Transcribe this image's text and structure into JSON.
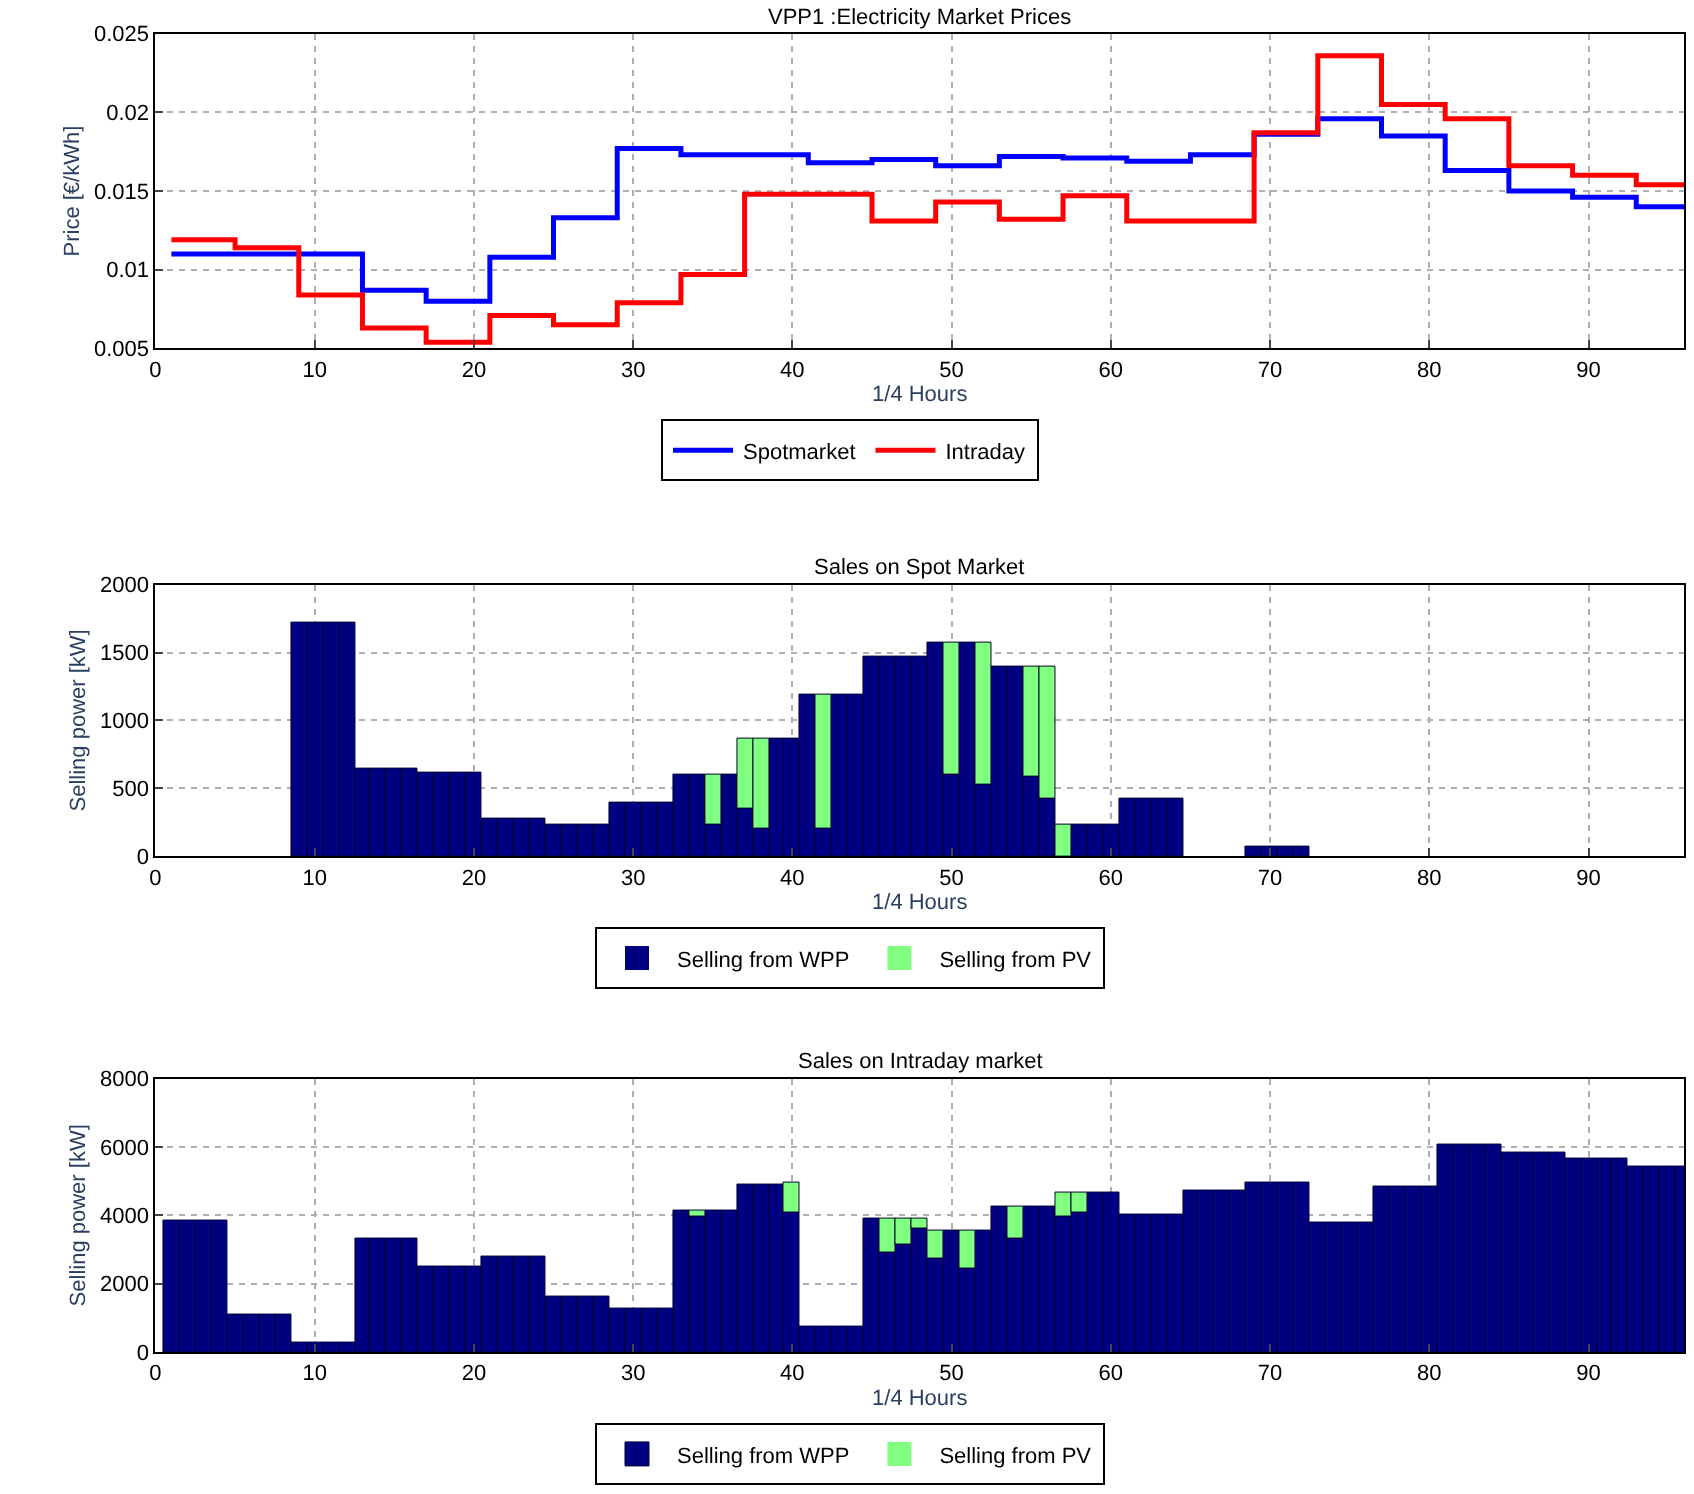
{
  "chart_data": [
    {
      "type": "step",
      "title": "VPP1 :Electricity Market Prices",
      "xlabel": "1/4 Hours",
      "ylabel": "Price [€/kWh]",
      "xlim": [
        0,
        96
      ],
      "xticks": [
        0,
        10,
        20,
        30,
        40,
        50,
        60,
        70,
        80,
        90
      ],
      "ylim": [
        0.005,
        0.025
      ],
      "yticks": [
        0.005,
        0.01,
        0.015,
        0.02,
        0.025
      ],
      "grid": true,
      "legend": "bottom",
      "line_style": "solid",
      "marker": "none",
      "x": [
        1,
        5,
        9,
        13,
        17,
        21,
        25,
        29,
        33,
        37,
        41,
        45,
        49,
        53,
        57,
        61,
        65,
        69,
        73,
        77,
        81,
        85,
        89,
        93,
        96
      ],
      "series": [
        {
          "name": "Spotmarket",
          "color": "#0000ff",
          "values": [
            0.011,
            0.011,
            0.011,
            0.0087,
            0.008,
            0.0108,
            0.0133,
            0.0177,
            0.0173,
            0.0173,
            0.0168,
            0.017,
            0.0166,
            0.0172,
            0.0171,
            0.0169,
            0.0173,
            0.0186,
            0.0196,
            0.0185,
            0.0163,
            0.015,
            0.0146,
            0.014,
            0.014
          ]
        },
        {
          "name": "Intraday",
          "color": "#ff0000",
          "values": [
            0.0119,
            0.0114,
            0.0084,
            0.0063,
            0.0054,
            0.0071,
            0.0065,
            0.0079,
            0.0097,
            0.0148,
            0.0148,
            0.0131,
            0.0143,
            0.0132,
            0.0147,
            0.0131,
            0.0131,
            0.0187,
            0.0236,
            0.0205,
            0.0196,
            0.0166,
            0.016,
            0.0154,
            0.0154
          ]
        }
      ]
    },
    {
      "type": "bar",
      "stacked": true,
      "title": "Sales on Spot Market",
      "xlabel": "1/4 Hours",
      "ylabel": "Selling power [kW]",
      "xlim": [
        0,
        96
      ],
      "xticks": [
        0,
        10,
        20,
        30,
        40,
        50,
        60,
        70,
        80,
        90
      ],
      "ylim": [
        0,
        2000
      ],
      "yticks": [
        0,
        500,
        1000,
        1500,
        2000
      ],
      "grid": true,
      "legend": "bottom",
      "x": [
        1,
        2,
        3,
        4,
        5,
        6,
        7,
        8,
        9,
        10,
        11,
        12,
        13,
        14,
        15,
        16,
        17,
        18,
        19,
        20,
        21,
        22,
        23,
        24,
        25,
        26,
        27,
        28,
        29,
        30,
        31,
        32,
        33,
        34,
        35,
        36,
        37,
        38,
        39,
        40,
        41,
        42,
        43,
        44,
        45,
        46,
        47,
        48,
        49,
        50,
        51,
        52,
        53,
        54,
        55,
        56,
        57,
        58,
        59,
        60,
        61,
        62,
        63,
        64,
        65,
        66,
        67,
        68,
        69,
        70,
        71,
        72,
        73,
        74,
        75,
        76,
        77,
        78,
        79,
        80,
        81,
        82,
        83,
        84,
        85,
        86,
        87,
        88,
        89,
        90,
        91,
        92,
        93,
        94,
        95,
        96
      ],
      "series": [
        {
          "name": "Selling from WPP",
          "color": "#000080",
          "values": [
            0,
            0,
            0,
            0,
            0,
            0,
            0,
            0,
            1720,
            1720,
            1720,
            1720,
            650,
            650,
            650,
            650,
            610,
            610,
            610,
            610,
            270,
            270,
            270,
            270,
            230,
            230,
            230,
            230,
            390,
            390,
            390,
            390,
            600,
            600,
            230,
            600,
            350,
            200,
            870,
            870,
            1190,
            200,
            1190,
            1190,
            1470,
            1470,
            1470,
            1470,
            1570,
            600,
            1570,
            530,
            1390,
            1390,
            580,
            430,
            0,
            230,
            230,
            230,
            420,
            420,
            420,
            420,
            0,
            0,
            0,
            0,
            70,
            70,
            70,
            70,
            0,
            0,
            0,
            0,
            0,
            0,
            0,
            0,
            0,
            0,
            0,
            0,
            0,
            0,
            0,
            0,
            0,
            0,
            0,
            0,
            0,
            0,
            0,
            0
          ]
        },
        {
          "name": "Selling from PV",
          "color": "#80ff80",
          "values": [
            0,
            0,
            0,
            0,
            0,
            0,
            0,
            0,
            0,
            0,
            0,
            0,
            0,
            0,
            0,
            0,
            0,
            0,
            0,
            0,
            0,
            0,
            0,
            0,
            0,
            0,
            0,
            0,
            0,
            0,
            0,
            0,
            0,
            0,
            370,
            0,
            520,
            670,
            0,
            0,
            0,
            990,
            0,
            0,
            0,
            0,
            0,
            0,
            0,
            970,
            0,
            1040,
            0,
            0,
            810,
            960,
            230,
            0,
            0,
            0,
            0,
            0,
            0,
            0,
            0,
            0,
            0,
            0,
            0,
            0,
            0,
            0,
            0,
            0,
            0,
            0,
            0,
            0,
            0,
            0,
            0,
            0,
            0,
            0,
            0,
            0,
            0,
            0,
            0,
            0,
            0,
            0,
            0,
            0,
            0,
            0
          ]
        }
      ]
    },
    {
      "type": "bar",
      "stacked": true,
      "title": "Sales on Intraday market",
      "xlabel": "1/4 Hours",
      "ylabel": "Selling power [kW]",
      "xlim": [
        0,
        96
      ],
      "xticks": [
        0,
        10,
        20,
        30,
        40,
        50,
        60,
        70,
        80,
        90
      ],
      "ylim": [
        0,
        8000
      ],
      "yticks": [
        0,
        2000,
        4000,
        6000,
        8000
      ],
      "grid": true,
      "legend": "bottom",
      "x": [
        1,
        2,
        3,
        4,
        5,
        6,
        7,
        8,
        9,
        10,
        11,
        12,
        13,
        14,
        15,
        16,
        17,
        18,
        19,
        20,
        21,
        22,
        23,
        24,
        25,
        26,
        27,
        28,
        29,
        30,
        31,
        32,
        33,
        34,
        35,
        36,
        37,
        38,
        39,
        40,
        41,
        42,
        43,
        44,
        45,
        46,
        47,
        48,
        49,
        50,
        51,
        52,
        53,
        54,
        55,
        56,
        57,
        58,
        59,
        60,
        61,
        62,
        63,
        64,
        65,
        66,
        67,
        68,
        69,
        70,
        71,
        72,
        73,
        74,
        75,
        76,
        77,
        78,
        79,
        80,
        81,
        82,
        83,
        84,
        85,
        86,
        87,
        88,
        89,
        90,
        91,
        92,
        93,
        94,
        95,
        96
      ],
      "series": [
        {
          "name": "Selling from WPP",
          "color": "#000080",
          "values": [
            3870,
            3870,
            3870,
            3870,
            1080,
            1080,
            1080,
            1080,
            300,
            300,
            300,
            300,
            3350,
            3350,
            3350,
            3350,
            2500,
            2500,
            2500,
            2500,
            2800,
            2800,
            2800,
            2800,
            1600,
            1600,
            1600,
            1600,
            1250,
            1250,
            1250,
            1250,
            4150,
            3950,
            4150,
            4150,
            4900,
            4900,
            4900,
            4100,
            750,
            750,
            750,
            750,
            3900,
            2900,
            3150,
            3600,
            2750,
            3550,
            2450,
            3550,
            4250,
            3300,
            4250,
            4250,
            3950,
            4100,
            4650,
            4650,
            4050,
            4050,
            4050,
            4050,
            4750,
            4750,
            4750,
            4750,
            4950,
            4950,
            4950,
            4950,
            3800,
            3800,
            3800,
            3800,
            4850,
            4850,
            4850,
            4850,
            6050,
            6050,
            6050,
            6050,
            5850,
            5850,
            5850,
            5850,
            5650,
            5650,
            5650,
            5650,
            5450,
            5450,
            5450,
            5450
          ]
        },
        {
          "name": "Selling from PV",
          "color": "#80ff80",
          "values": [
            0,
            0,
            0,
            0,
            0,
            0,
            0,
            0,
            0,
            0,
            0,
            0,
            0,
            0,
            0,
            0,
            0,
            0,
            0,
            0,
            0,
            0,
            0,
            0,
            0,
            0,
            0,
            0,
            0,
            0,
            0,
            0,
            0,
            200,
            0,
            0,
            0,
            0,
            0,
            850,
            0,
            0,
            0,
            0,
            0,
            1000,
            750,
            300,
            800,
            0,
            1100,
            0,
            0,
            950,
            0,
            0,
            700,
            550,
            0,
            0,
            0,
            0,
            0,
            0,
            0,
            0,
            0,
            0,
            0,
            0,
            0,
            0,
            0,
            0,
            0,
            0,
            0,
            0,
            0,
            0,
            0,
            0,
            0,
            0,
            0,
            0,
            0,
            0,
            0,
            0,
            0,
            0,
            0,
            0,
            0,
            0
          ]
        }
      ]
    }
  ]
}
